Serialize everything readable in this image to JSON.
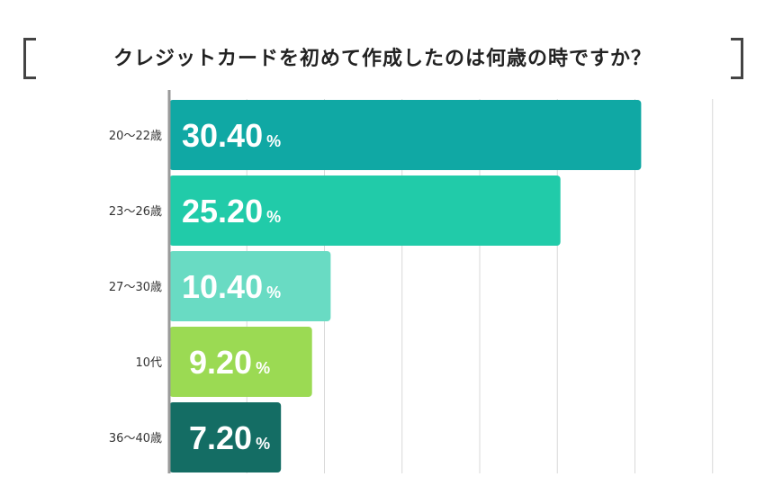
{
  "title": "クレジットカードを初めて作成したのは何歳の時ですか？",
  "colors": {
    "bar1": "#10a8a4",
    "bar2": "#21cba9",
    "bar3": "#69dbc3",
    "bar4": "#9bda53",
    "bar5": "#146d64",
    "grid": "#d9d9d9",
    "axis": "#9a9a9a",
    "bracket": "#444444"
  },
  "chart_data": {
    "type": "bar",
    "orientation": "horizontal",
    "title": "クレジットカードを初めて作成したのは何歳の時ですか？",
    "categories": [
      "20〜22歳",
      "23〜26歳",
      "27〜30歳",
      "10代",
      "36〜40歳"
    ],
    "values": [
      30.4,
      25.2,
      10.4,
      9.2,
      7.2
    ],
    "value_labels": [
      "30.40",
      "25.20",
      "10.40",
      "9.20",
      "7.20"
    ],
    "unit": "%",
    "xlim": [
      0,
      35
    ],
    "grid": true,
    "legend": "none"
  }
}
